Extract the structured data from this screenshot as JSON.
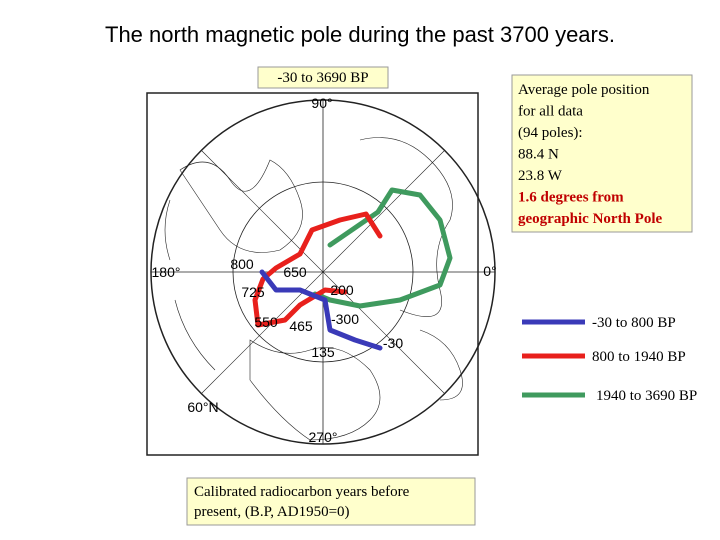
{
  "header": {
    "title": "The north magnetic pole during the past 3700 years."
  },
  "range_label": "-30 to 3690 BP",
  "info": {
    "lines": [
      "Average pole position",
      "for all data",
      "(94 poles):",
      "88.4 N",
      "23.8 W"
    ],
    "highlight": [
      "1.6 degrees from",
      "geographic North Pole"
    ],
    "highlight_color": "#c00000"
  },
  "legend": {
    "items": [
      {
        "label": "-30 to 800 BP",
        "color": "#3a3ab8"
      },
      {
        "label": "800 to 1940 BP",
        "color": "#e8201c"
      },
      {
        "label": "1940 to 3690 BP",
        "color": "#3f9a5e"
      }
    ]
  },
  "map": {
    "labels": [
      "800",
      "650",
      "725",
      "550",
      "465",
      "-300",
      "135",
      "-30",
      "200",
      "180°",
      "0°",
      "90°",
      "270°",
      "60°N"
    ]
  },
  "caption": [
    "Calibrated radiocarbon years before",
    "present, (B.P, AD1950=0)"
  ]
}
